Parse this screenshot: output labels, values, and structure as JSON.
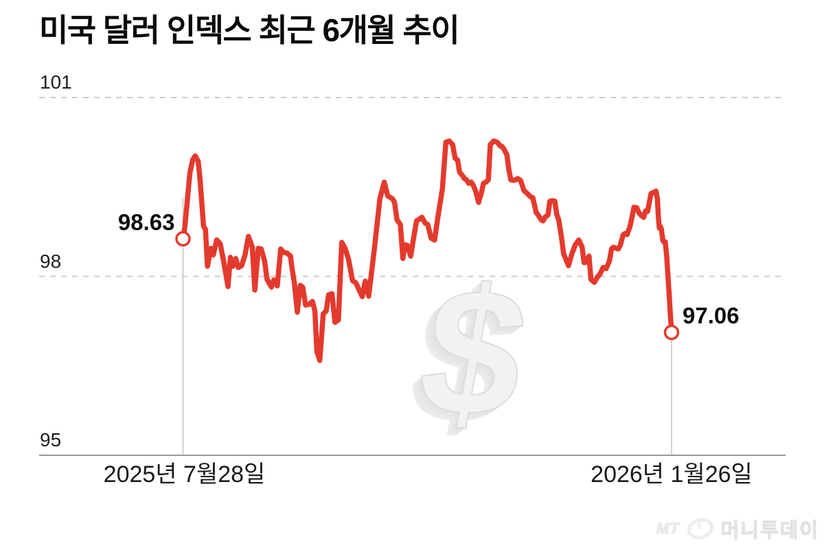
{
  "title": "미국 달러 인덱스 최근 6개월 추이",
  "annotations": {
    "start": {
      "value": "98.63",
      "date": "2025년 7월28일"
    },
    "end": {
      "value": "97.06",
      "date": "2026년 1월26일"
    }
  },
  "watermark": {
    "symbol": "$"
  },
  "logo": {
    "prefix": "MT",
    "name": "머니투데이"
  },
  "colors": {
    "line": "#e43a2d",
    "grid_dashed": "#cdcdcd",
    "axis": "#9a9a9a",
    "marker_line": "#c4c4c4",
    "text": "#0d0d0d",
    "point_fill": "#ffffff"
  },
  "chart_data": {
    "type": "line",
    "title": "미국 달러 인덱스 최근 6개월 추이",
    "series_name": "미국 달러 인덱스",
    "xlabel": "",
    "ylabel": "",
    "ylim": [
      95,
      101
    ],
    "yticks": [
      101,
      98,
      95
    ],
    "grid": "horizontal-dashed",
    "x_start_label": "2025년 7월28일",
    "x_end_label": "2026년 1월26일",
    "start_value": 98.63,
    "end_value": 97.06,
    "points": [
      [
        0,
        98.63
      ],
      [
        0.4,
        98.84
      ],
      [
        0.8,
        99.2
      ],
      [
        1.4,
        99.73
      ],
      [
        2,
        99.96
      ],
      [
        2.5,
        100.02
      ],
      [
        3.1,
        99.93
      ],
      [
        3.5,
        99.62
      ],
      [
        3.9,
        99.18
      ],
      [
        4.2,
        98.84
      ],
      [
        4.6,
        98.79
      ],
      [
        5,
        98.17
      ],
      [
        5.7,
        98.47
      ],
      [
        6.2,
        98.36
      ],
      [
        6.9,
        98.61
      ],
      [
        7.6,
        98.55
      ],
      [
        8.3,
        98.26
      ],
      [
        9.2,
        97.83
      ],
      [
        9.7,
        98.32
      ],
      [
        10.2,
        98.17
      ],
      [
        10.8,
        98.3
      ],
      [
        11.3,
        98.15
      ],
      [
        12,
        98.18
      ],
      [
        12.7,
        98.36
      ],
      [
        13.4,
        98.67
      ],
      [
        14.2,
        98.49
      ],
      [
        14.7,
        97.77
      ],
      [
        15.4,
        98.47
      ],
      [
        16,
        98.46
      ],
      [
        16.7,
        98.26
      ],
      [
        17.2,
        97.95
      ],
      [
        18.1,
        97.82
      ],
      [
        18.6,
        97.94
      ],
      [
        19.3,
        97.84
      ],
      [
        20,
        98.46
      ],
      [
        20.6,
        98.4
      ],
      [
        21.3,
        98.39
      ],
      [
        22,
        98.34
      ],
      [
        22.4,
        98.09
      ],
      [
        22.8,
        97.89
      ],
      [
        23.4,
        97.4
      ],
      [
        24,
        97.85
      ],
      [
        24.5,
        97.82
      ],
      [
        25.1,
        97.52
      ],
      [
        25.8,
        97.53
      ],
      [
        26.5,
        97.58
      ],
      [
        27,
        97.42
      ],
      [
        27.4,
        96.74
      ],
      [
        28,
        96.59
      ],
      [
        28.7,
        97.37
      ],
      [
        29.3,
        97.42
      ],
      [
        29.8,
        97.69
      ],
      [
        30.5,
        97.71
      ],
      [
        31.1,
        97.23
      ],
      [
        31.8,
        97.27
      ],
      [
        32.5,
        98.57
      ],
      [
        33.2,
        98.47
      ],
      [
        33.9,
        98.28
      ],
      [
        34.7,
        97.93
      ],
      [
        35.4,
        97.89
      ],
      [
        36.1,
        97.76
      ],
      [
        36.7,
        97.66
      ],
      [
        37.3,
        97.92
      ],
      [
        38,
        97.67
      ],
      [
        39.1,
        98.41
      ],
      [
        40.3,
        99.3
      ],
      [
        41.2,
        99.58
      ],
      [
        41.9,
        99.35
      ],
      [
        42.9,
        99.3
      ],
      [
        43.3,
        99.24
      ],
      [
        43.8,
        98.95
      ],
      [
        44.5,
        98.87
      ],
      [
        45,
        98.3
      ],
      [
        45.4,
        98.53
      ],
      [
        45.9,
        98.52
      ],
      [
        46.6,
        98.34
      ],
      [
        47.3,
        98.69
      ],
      [
        47.8,
        98.93
      ],
      [
        48.2,
        98.95
      ],
      [
        48.9,
        98.99
      ],
      [
        49.6,
        98.89
      ],
      [
        50.1,
        98.87
      ],
      [
        50.8,
        98.64
      ],
      [
        51.5,
        98.61
      ],
      [
        52.2,
        99.01
      ],
      [
        53.1,
        99.47
      ],
      [
        53.8,
        100.25
      ],
      [
        54.5,
        100.27
      ],
      [
        55.2,
        100.21
      ],
      [
        55.7,
        99.98
      ],
      [
        56.2,
        99.95
      ],
      [
        56.6,
        99.75
      ],
      [
        57.1,
        99.7
      ],
      [
        57.6,
        99.64
      ],
      [
        58,
        99.62
      ],
      [
        58.5,
        99.56
      ],
      [
        59,
        99.58
      ],
      [
        59.4,
        99.53
      ],
      [
        59.9,
        99.43
      ],
      [
        60.5,
        99.24
      ],
      [
        61.1,
        99.41
      ],
      [
        61.5,
        99.56
      ],
      [
        62,
        99.58
      ],
      [
        62.5,
        99.62
      ],
      [
        62.9,
        100.21
      ],
      [
        63.6,
        100.27
      ],
      [
        64.3,
        100.25
      ],
      [
        64.9,
        100.19
      ],
      [
        65.3,
        100.18
      ],
      [
        65.7,
        100.13
      ],
      [
        66.3,
        100.04
      ],
      [
        66.7,
        99.79
      ],
      [
        67.1,
        99.62
      ],
      [
        67.7,
        99.61
      ],
      [
        68.1,
        99.62
      ],
      [
        68.5,
        99.64
      ],
      [
        69.1,
        99.61
      ],
      [
        69.8,
        99.44
      ],
      [
        70.2,
        99.41
      ],
      [
        70.6,
        99.38
      ],
      [
        71.2,
        99.33
      ],
      [
        71.6,
        99.32
      ],
      [
        72.3,
        99.07
      ],
      [
        72.7,
        99.03
      ],
      [
        73.3,
        98.95
      ],
      [
        73.7,
        98.93
      ],
      [
        74.1,
        98.99
      ],
      [
        74.7,
        99.03
      ],
      [
        75.1,
        99.26
      ],
      [
        75.5,
        99.27
      ],
      [
        76.1,
        99.26
      ],
      [
        76.5,
        99.04
      ],
      [
        76.9,
        98.95
      ],
      [
        77.5,
        98.64
      ],
      [
        77.9,
        98.38
      ],
      [
        78.9,
        98.18
      ],
      [
        79.6,
        98.38
      ],
      [
        80.3,
        98.53
      ],
      [
        81,
        98.61
      ],
      [
        81.7,
        98.49
      ],
      [
        82.1,
        98.23
      ],
      [
        82.5,
        98.24
      ],
      [
        83.1,
        98.34
      ],
      [
        83.5,
        97.95
      ],
      [
        84.2,
        97.9
      ],
      [
        84.9,
        98
      ],
      [
        85.3,
        98.03
      ],
      [
        86,
        98.15
      ],
      [
        86.6,
        98.13
      ],
      [
        87.3,
        98.26
      ],
      [
        87.7,
        98.46
      ],
      [
        88.1,
        98.49
      ],
      [
        88.7,
        98.47
      ],
      [
        89.1,
        98.46
      ],
      [
        89.5,
        98.52
      ],
      [
        90.1,
        98.7
      ],
      [
        90.5,
        98.72
      ],
      [
        90.9,
        98.7
      ],
      [
        91.5,
        98.84
      ],
      [
        91.9,
        98.99
      ],
      [
        92.3,
        99.16
      ],
      [
        92.9,
        99.15
      ],
      [
        93.3,
        99.07
      ],
      [
        93.7,
        99.03
      ],
      [
        94.3,
        98.99
      ],
      [
        94.7,
        99.1
      ],
      [
        95.1,
        99.09
      ],
      [
        95.4,
        99.22
      ],
      [
        95.8,
        99.39
      ],
      [
        96.4,
        99.41
      ],
      [
        96.8,
        99.43
      ],
      [
        97.1,
        99.3
      ],
      [
        97.3,
        98.99
      ],
      [
        97.5,
        98.81
      ],
      [
        97.7,
        98.84
      ],
      [
        97.9,
        98.8
      ],
      [
        98.2,
        98.61
      ],
      [
        98.4,
        98.58
      ],
      [
        98.7,
        98.58
      ],
      [
        99,
        98.34
      ],
      [
        99.4,
        97.84
      ],
      [
        99.7,
        97.43
      ],
      [
        100,
        97.06
      ]
    ]
  }
}
